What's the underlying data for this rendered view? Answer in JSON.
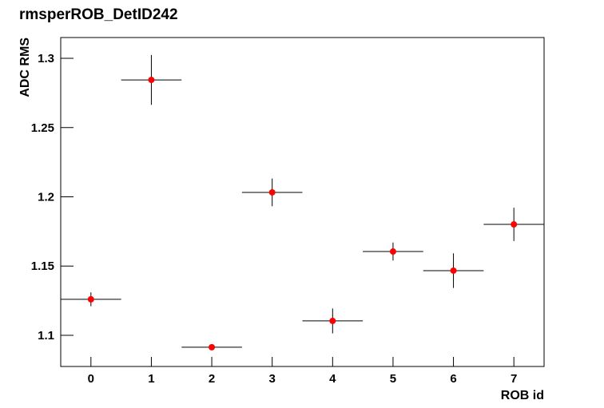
{
  "chart_data": {
    "type": "scatter",
    "title": "rmsperROB_DetID242",
    "x_label": "ROB id",
    "y_label": "ADC RMS",
    "x": [
      0,
      1,
      2,
      3,
      4,
      5,
      6,
      7
    ],
    "values": [
      1.126,
      1.2844,
      1.0914,
      1.2032,
      1.1104,
      1.1605,
      1.1467,
      1.1801
    ],
    "errors": [
      0.005,
      0.018,
      0.002,
      0.01,
      0.009,
      0.0065,
      0.0125,
      0.012
    ],
    "x_errors": [
      0.5,
      0.5,
      0.5,
      0.5,
      0.5,
      0.5,
      0.5,
      0.5
    ],
    "color": "#ff0000",
    "xlim": [
      -0.5,
      7.5
    ],
    "ylim": [
      1.0775,
      1.315
    ],
    "xticks": [
      0,
      1,
      2,
      3,
      4,
      5,
      6,
      7
    ],
    "yticks": [
      1.1,
      1.15,
      1.2,
      1.25,
      1.3
    ]
  }
}
